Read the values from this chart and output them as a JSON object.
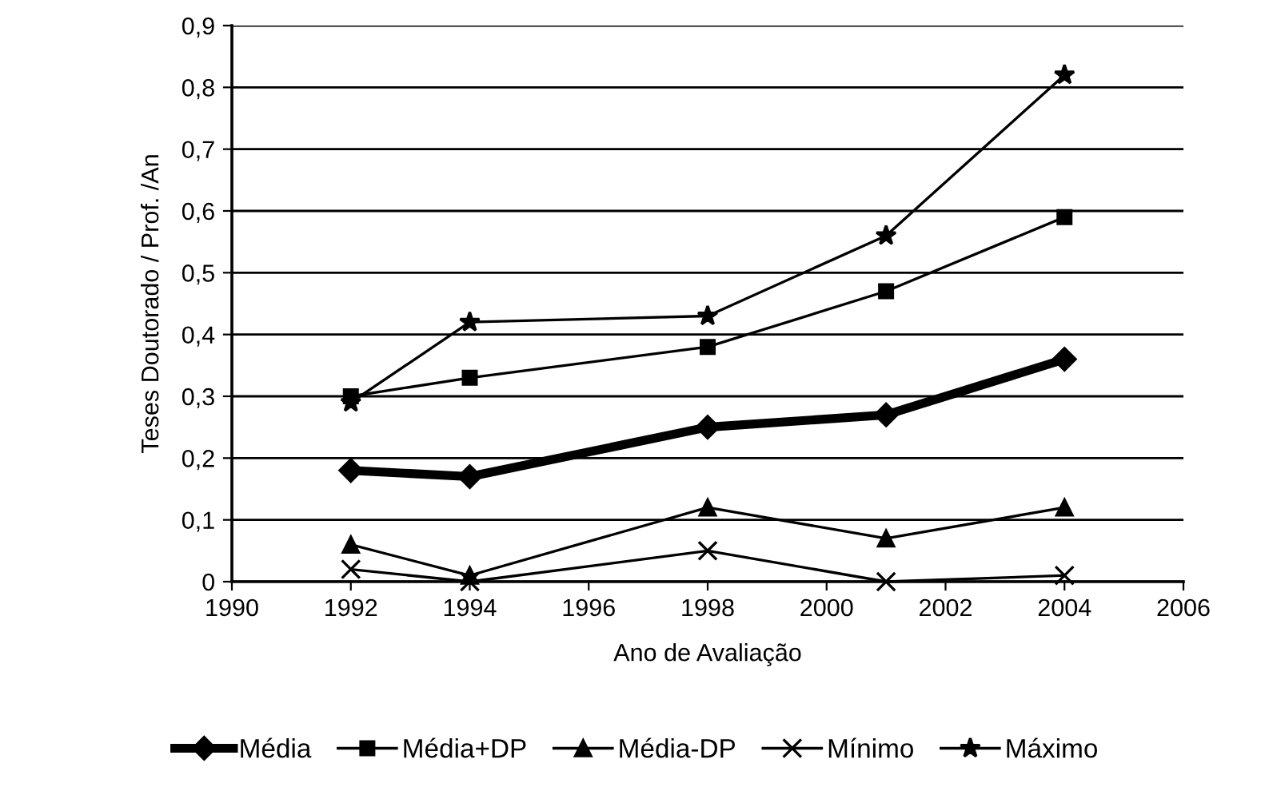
{
  "chart_data": {
    "type": "line",
    "xlabel": "Ano de Avaliação",
    "ylabel": "Teses Doutorado / Prof. /An",
    "x": [
      1992,
      1994,
      1998,
      2001,
      2004
    ],
    "series": [
      {
        "name": "Média",
        "color": "#000000",
        "marker": "diamond",
        "values": [
          0.18,
          0.17,
          0.25,
          0.27,
          0.36
        ]
      },
      {
        "name": "Média+DP",
        "color": "#000000",
        "marker": "square",
        "values": [
          0.3,
          0.33,
          0.38,
          0.47,
          0.59
        ]
      },
      {
        "name": "Média-DP",
        "color": "#000000",
        "marker": "triangle",
        "values": [
          0.06,
          0.01,
          0.12,
          0.07,
          0.12
        ]
      },
      {
        "name": "Mínimo",
        "color": "#000000",
        "marker": "cross",
        "values": [
          0.02,
          0.0,
          0.05,
          0.0,
          0.01
        ]
      },
      {
        "name": "Máximo",
        "color": "#000000",
        "marker": "star",
        "values": [
          0.29,
          0.42,
          0.43,
          0.56,
          0.82
        ]
      }
    ],
    "xlim": [
      1990,
      2006
    ],
    "xticks": [
      1990,
      1992,
      1994,
      1996,
      1998,
      2000,
      2002,
      2004,
      2006
    ],
    "ylim": [
      0,
      0.9
    ],
    "yticks": [
      0,
      {
        "value": 0.1,
        "label": "0,1"
      },
      {
        "value": 0.2,
        "label": "0,2"
      },
      {
        "value": 0.3,
        "label": "0,3"
      },
      {
        "value": 0.4,
        "label": "0,4"
      },
      {
        "value": 0.5,
        "label": "0,5"
      },
      {
        "value": 0.6,
        "label": "0,6"
      },
      {
        "value": 0.7,
        "label": "0,7"
      },
      {
        "value": 0.8,
        "label": "0,8"
      },
      {
        "value": 0.9,
        "label": "0,9"
      }
    ],
    "grid": "y",
    "legend": "bottom",
    "line_style": "solid"
  }
}
